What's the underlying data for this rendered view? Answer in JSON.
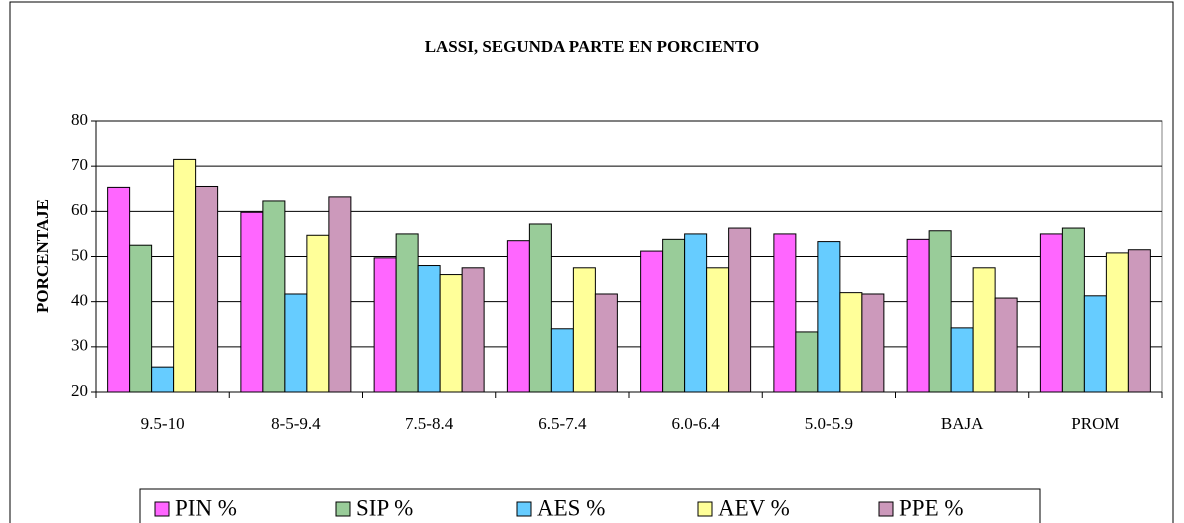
{
  "chart_data": {
    "type": "bar",
    "title": "LASSI, SEGUNDA PARTE EN PORCIENTO",
    "y_label": "PORCENTAJE",
    "categories": [
      "9.5-10",
      "8-5-9.4",
      "7.5-8.4",
      "6.5-7.4",
      "6.0-6.4",
      "5.0-5.9",
      "BAJA",
      "PROM"
    ],
    "series": [
      {
        "name": "PIN %",
        "color": "#ff66ff",
        "values": [
          65.3,
          59.8,
          49.7,
          53.5,
          51.2,
          55,
          53.8,
          55
        ]
      },
      {
        "name": "SIP %",
        "color": "#99cc99",
        "values": [
          52.5,
          62.3,
          55,
          57.2,
          53.8,
          33.3,
          55.7,
          56.3
        ]
      },
      {
        "name": "AES %",
        "color": "#66ccff",
        "values": [
          25.5,
          41.7,
          48,
          34,
          55,
          53.3,
          34.2,
          41.3
        ]
      },
      {
        "name": "AEV %",
        "color": "#ffff99",
        "values": [
          71.5,
          54.7,
          46,
          47.5,
          47.5,
          42,
          47.5,
          50.8
        ]
      },
      {
        "name": "PPE %",
        "color": "#cc99bb",
        "values": [
          65.5,
          63.2,
          47.5,
          41.7,
          56.3,
          41.7,
          40.8,
          51.5
        ]
      }
    ],
    "ylim": [
      20,
      80
    ],
    "yticks": [
      20,
      30,
      40,
      50,
      60,
      70,
      80
    ],
    "grid": true
  }
}
